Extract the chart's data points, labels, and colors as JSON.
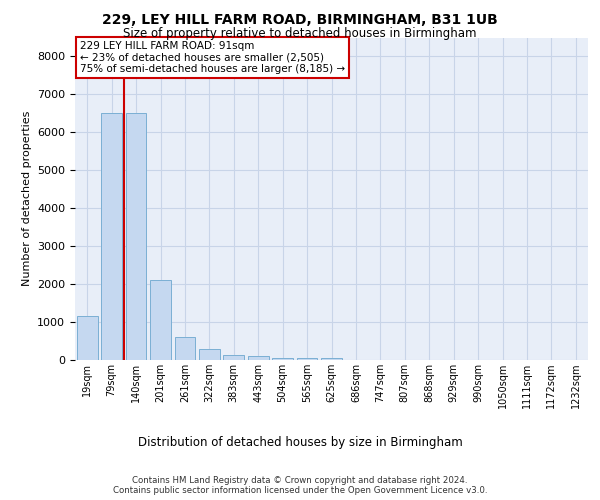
{
  "title": "229, LEY HILL FARM ROAD, BIRMINGHAM, B31 1UB",
  "subtitle": "Size of property relative to detached houses in Birmingham",
  "xlabel": "Distribution of detached houses by size in Birmingham",
  "ylabel": "Number of detached properties",
  "footer_line1": "Contains HM Land Registry data © Crown copyright and database right 2024.",
  "footer_line2": "Contains public sector information licensed under the Open Government Licence v3.0.",
  "categories": [
    "19sqm",
    "79sqm",
    "140sqm",
    "201sqm",
    "261sqm",
    "322sqm",
    "383sqm",
    "443sqm",
    "504sqm",
    "565sqm",
    "625sqm",
    "686sqm",
    "747sqm",
    "807sqm",
    "868sqm",
    "929sqm",
    "990sqm",
    "1050sqm",
    "1111sqm",
    "1172sqm",
    "1232sqm"
  ],
  "values": [
    1150,
    6500,
    6500,
    2100,
    600,
    300,
    130,
    100,
    60,
    50,
    50,
    0,
    0,
    0,
    0,
    0,
    0,
    0,
    0,
    0,
    0
  ],
  "bar_color": "#c5d8f0",
  "bar_edge_color": "#7bafd4",
  "property_line_index": 1.5,
  "annotation_title": "229 LEY HILL FARM ROAD: 91sqm",
  "annotation_line1": "← 23% of detached houses are smaller (2,505)",
  "annotation_line2": "75% of semi-detached houses are larger (8,185) →",
  "annotation_box_facecolor": "#ffffff",
  "annotation_box_edgecolor": "#cc0000",
  "property_line_color": "#cc0000",
  "ylim_min": 0,
  "ylim_max": 8500,
  "yticks": [
    0,
    1000,
    2000,
    3000,
    4000,
    5000,
    6000,
    7000,
    8000
  ],
  "grid_color": "#c8d4e8",
  "axes_bg_color": "#e8eef8",
  "fig_bg_color": "#ffffff"
}
